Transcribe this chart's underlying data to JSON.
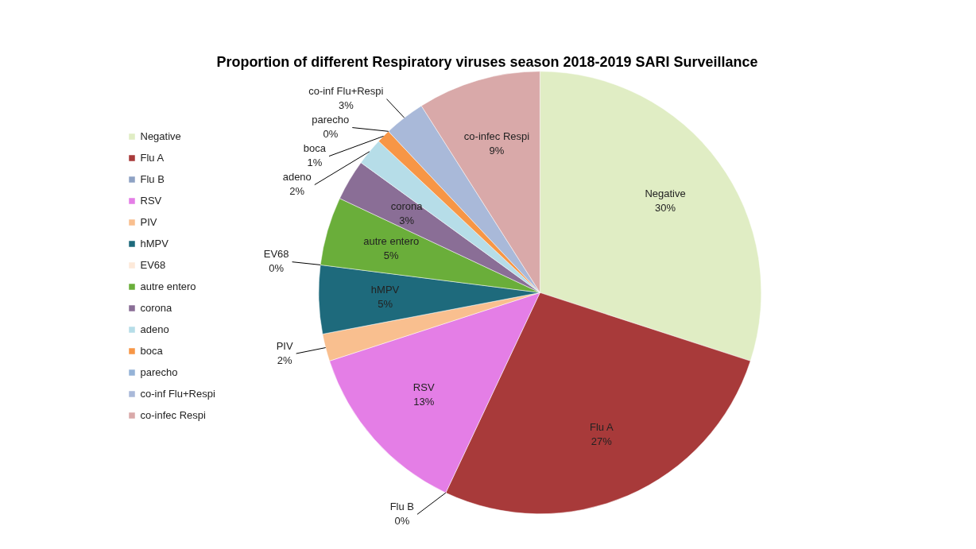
{
  "chart_data": {
    "type": "pie",
    "title": "Proportion of different Respiratory viruses season 2018-2019 SARI Surveillance",
    "categories": [
      "Negative",
      "Flu A",
      "Flu B",
      "RSV",
      "PIV",
      "hMPV",
      "EV68",
      "autre entero",
      "corona",
      "adeno",
      "boca",
      "parecho",
      "co-inf Flu+Respi",
      "co-infec Respi"
    ],
    "values": [
      30,
      27,
      0,
      13,
      2,
      5,
      0,
      5,
      3,
      2,
      1,
      0,
      3,
      9
    ],
    "value_labels": [
      "30%",
      "27%",
      "0%",
      "13%",
      "2%",
      "5%",
      "0%",
      "5%",
      "3%",
      "2%",
      "1%",
      "0%",
      "3%",
      "9%"
    ],
    "colors": [
      "#e0edc4",
      "#a83a3a",
      "#8ea2c4",
      "#e47ee6",
      "#f9bf8f",
      "#1e6a7c",
      "#fde9d9",
      "#6aae3a",
      "#8a6e96",
      "#b6dde8",
      "#f79646",
      "#95b3d7",
      "#a9b9d9",
      "#d9a9a9"
    ],
    "legend": "left"
  }
}
